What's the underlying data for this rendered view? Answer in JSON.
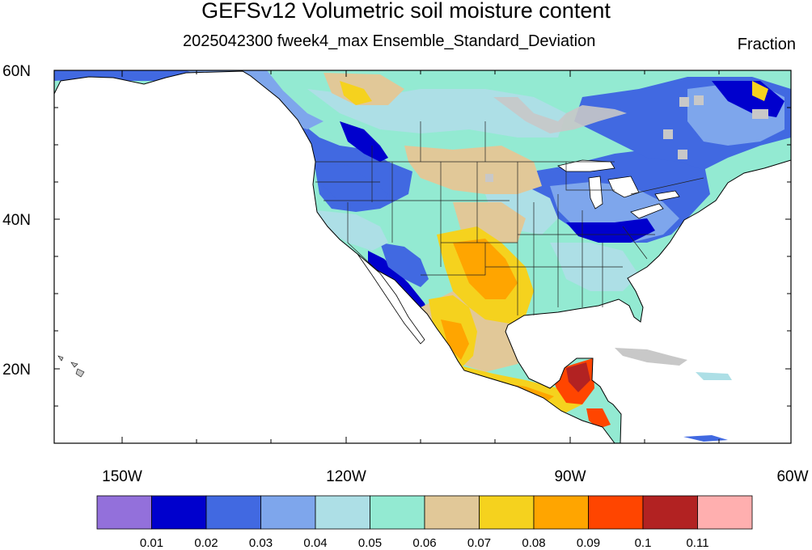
{
  "title": "GEFSv12 Volumetric soil moisture content",
  "subtitle": "2025042300 fweek4_max Ensemble_Standard_Deviation",
  "units": "Fraction",
  "map": {
    "projection": "cylindrical-equidistant",
    "lon_range": [
      -159,
      -60
    ],
    "lat_range": [
      10,
      60
    ],
    "lat_tick_labels": [
      "60N",
      "40N",
      "20N"
    ],
    "lon_tick_labels": [
      "150W",
      "120W",
      "90W",
      "60W"
    ]
  },
  "colorbar": {
    "colors": [
      "#9370DB",
      "#0000CD",
      "#4169E1",
      "#7EA6EC",
      "#ADDFE6",
      "#93EAD2",
      "#E1C898",
      "#F5D21E",
      "#FFA500",
      "#FF4500",
      "#B22222",
      "#FFAFAF"
    ],
    "labels": [
      "0.01",
      "0.02",
      "0.03",
      "0.04",
      "0.05",
      "0.06",
      "0.07",
      "0.08",
      "0.09",
      "0.1",
      "0.11"
    ]
  },
  "colors": {
    "missing_gray": "#c8c8c8",
    "coast": "#000000"
  }
}
